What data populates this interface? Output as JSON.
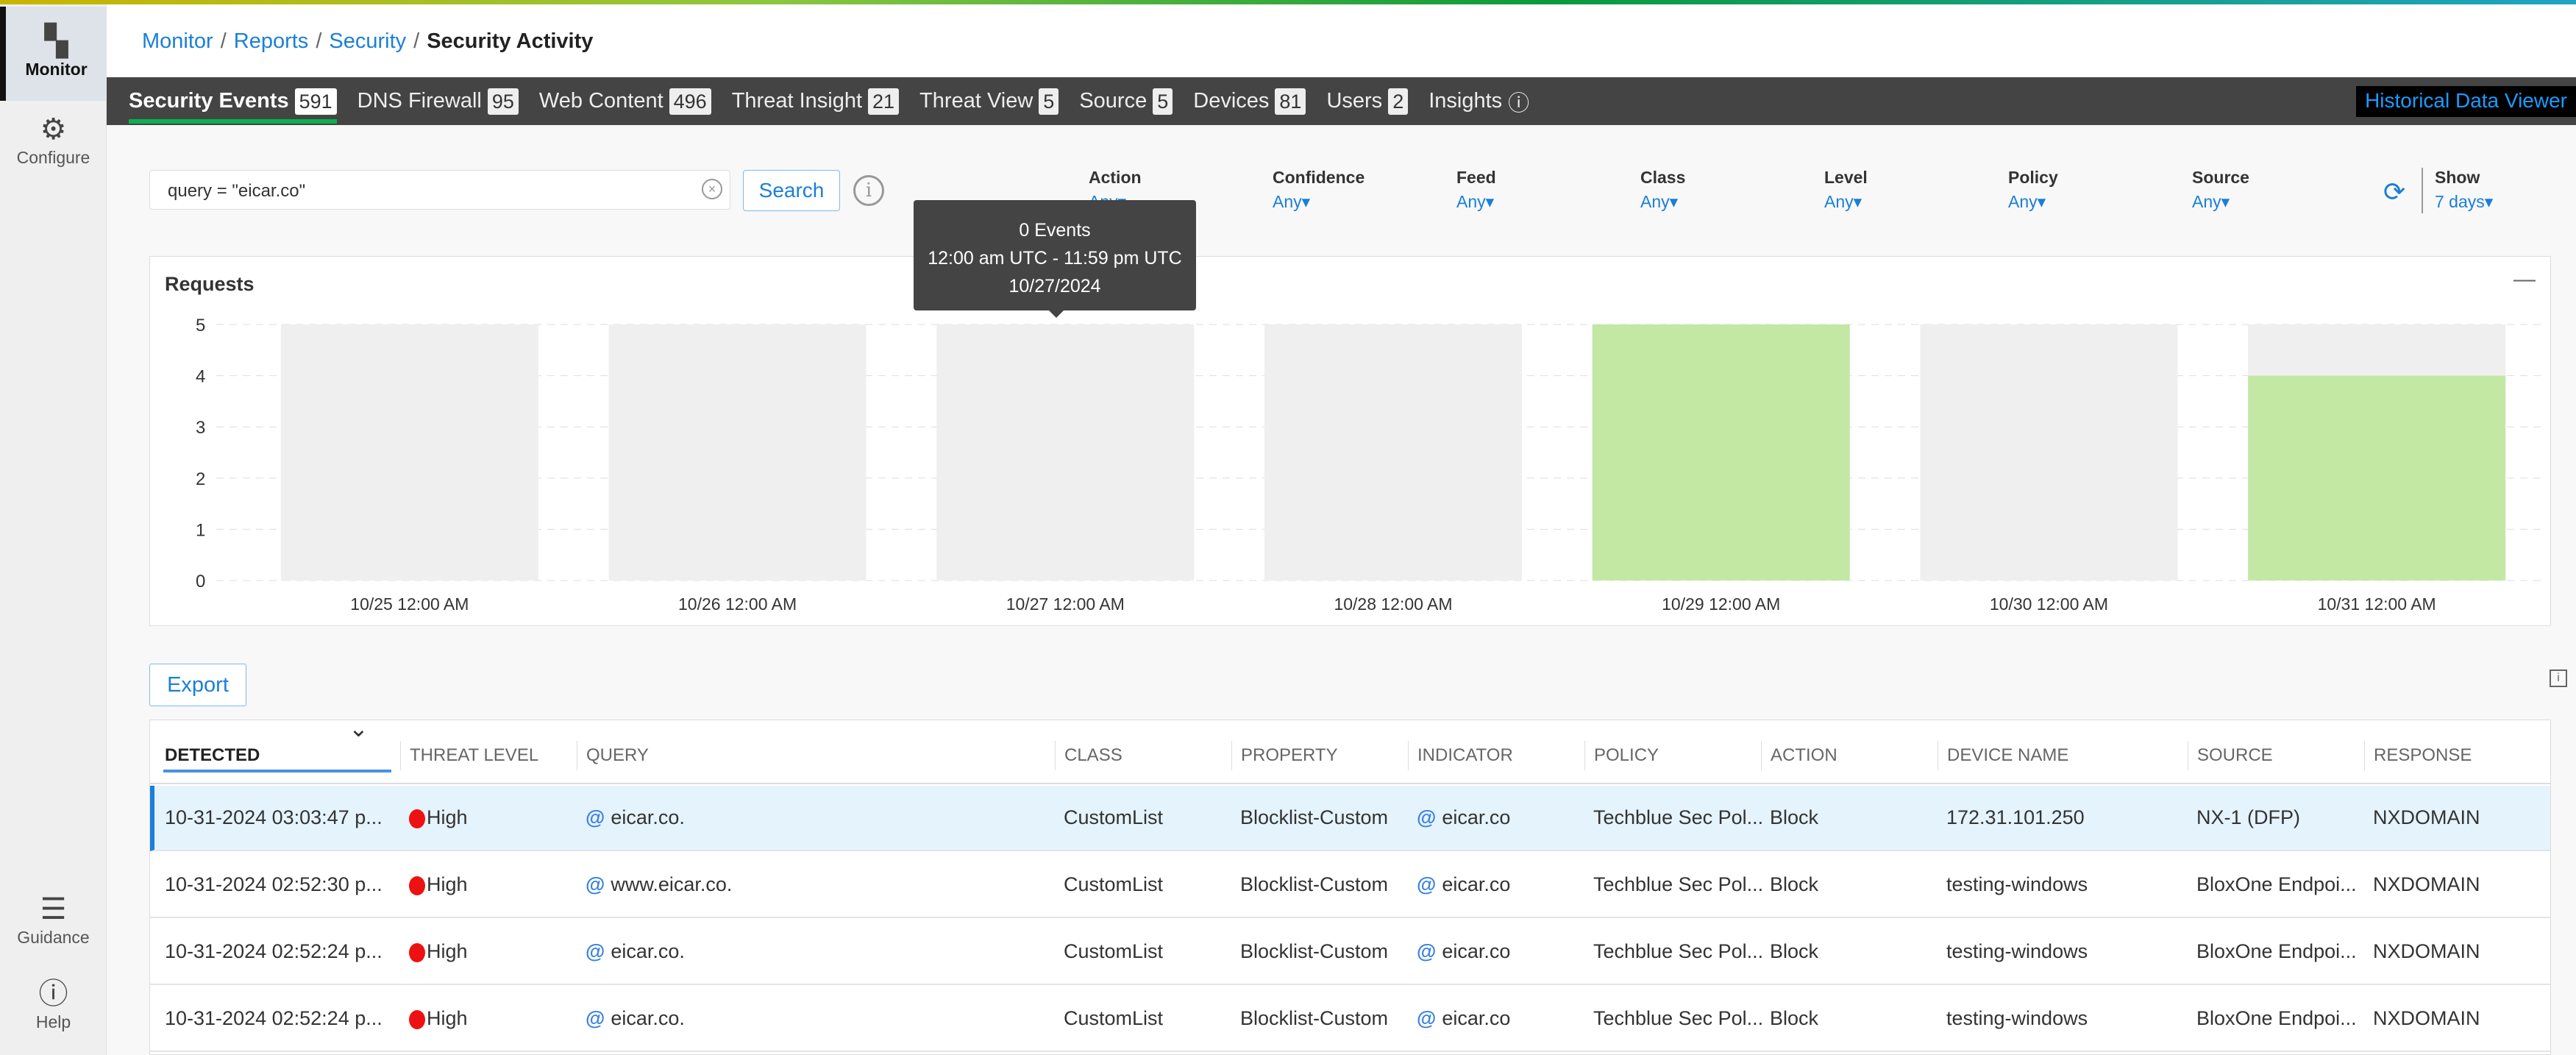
{
  "sidebar": {
    "items": [
      {
        "label": "Monitor",
        "icon": "grid-icon"
      },
      {
        "label": "Configure",
        "icon": "gear-icon"
      },
      {
        "label": "Guidance",
        "icon": "signpost-icon"
      },
      {
        "label": "Help",
        "icon": "help-icon"
      }
    ]
  },
  "breadcrumb": [
    "Monitor",
    "Reports",
    "Security"
  ],
  "page_title": "Security Activity",
  "tabs": [
    {
      "label": "Security Events",
      "count": "591"
    },
    {
      "label": "DNS Firewall",
      "count": "95"
    },
    {
      "label": "Web Content",
      "count": "496"
    },
    {
      "label": "Threat Insight",
      "count": "21"
    },
    {
      "label": "Threat View",
      "count": "5"
    },
    {
      "label": "Source",
      "count": "5"
    },
    {
      "label": "Devices",
      "count": "81"
    },
    {
      "label": "Users",
      "count": "2"
    },
    {
      "label": "Insights"
    }
  ],
  "historical": "Historical Data Viewer",
  "search": {
    "value": "query = \"eicar.co\"",
    "button": "Search"
  },
  "filters": [
    {
      "label": "Action",
      "value": "Any"
    },
    {
      "label": "Confidence",
      "value": "Any"
    },
    {
      "label": "Feed",
      "value": "Any"
    },
    {
      "label": "Class",
      "value": "Any"
    },
    {
      "label": "Level",
      "value": "Any"
    },
    {
      "label": "Policy",
      "value": "Any"
    },
    {
      "label": "Source",
      "value": "Any"
    }
  ],
  "show": {
    "label": "Show",
    "value": "7 days"
  },
  "chart_title": "Requests",
  "tooltip": {
    "line1": "0 Events",
    "line2": "12:00 am UTC - 11:59 pm UTC",
    "line3": "10/27/2024"
  },
  "chart_data": {
    "type": "bar",
    "categories": [
      "10/25 12:00 AM",
      "10/26 12:00 AM",
      "10/27 12:00 AM",
      "10/28 12:00 AM",
      "10/29 12:00 AM",
      "10/30 12:00 AM",
      "10/31 12:00 AM"
    ],
    "values": [
      0,
      0,
      0,
      0,
      5,
      0,
      4
    ],
    "ylim": [
      0,
      5
    ],
    "yticks": [
      "0",
      "1",
      "2",
      "3",
      "4",
      "5"
    ],
    "bar_color": "#c2e8a4",
    "background_color": "#efefef",
    "grid": true
  },
  "export": "Export",
  "table": {
    "columns": [
      "DETECTED",
      "THREAT LEVEL",
      "QUERY",
      "CLASS",
      "PROPERTY",
      "INDICATOR",
      "POLICY",
      "ACTION",
      "DEVICE NAME",
      "SOURCE",
      "RESPONSE"
    ],
    "rows": [
      [
        "10-31-2024 03:03:47 p...",
        "High",
        "eicar.co.",
        "CustomList",
        "Blocklist-Custom",
        "eicar.co",
        "Techblue Sec Pol...",
        "Block",
        "172.31.101.250",
        "NX-1 (DFP)",
        "NXDOMAIN"
      ],
      [
        "10-31-2024 02:52:30 p...",
        "High",
        "www.eicar.co.",
        "CustomList",
        "Blocklist-Custom",
        "eicar.co",
        "Techblue Sec Pol...",
        "Block",
        "testing-windows",
        "BloxOne Endpoi...",
        "NXDOMAIN"
      ],
      [
        "10-31-2024 02:52:24 p...",
        "High",
        "eicar.co.",
        "CustomList",
        "Blocklist-Custom",
        "eicar.co",
        "Techblue Sec Pol...",
        "Block",
        "testing-windows",
        "BloxOne Endpoi...",
        "NXDOMAIN"
      ],
      [
        "10-31-2024 02:52:24 p...",
        "High",
        "eicar.co.",
        "CustomList",
        "Blocklist-Custom",
        "eicar.co",
        "Techblue Sec Pol...",
        "Block",
        "testing-windows",
        "BloxOne Endpoi...",
        "NXDOMAIN"
      ]
    ]
  }
}
